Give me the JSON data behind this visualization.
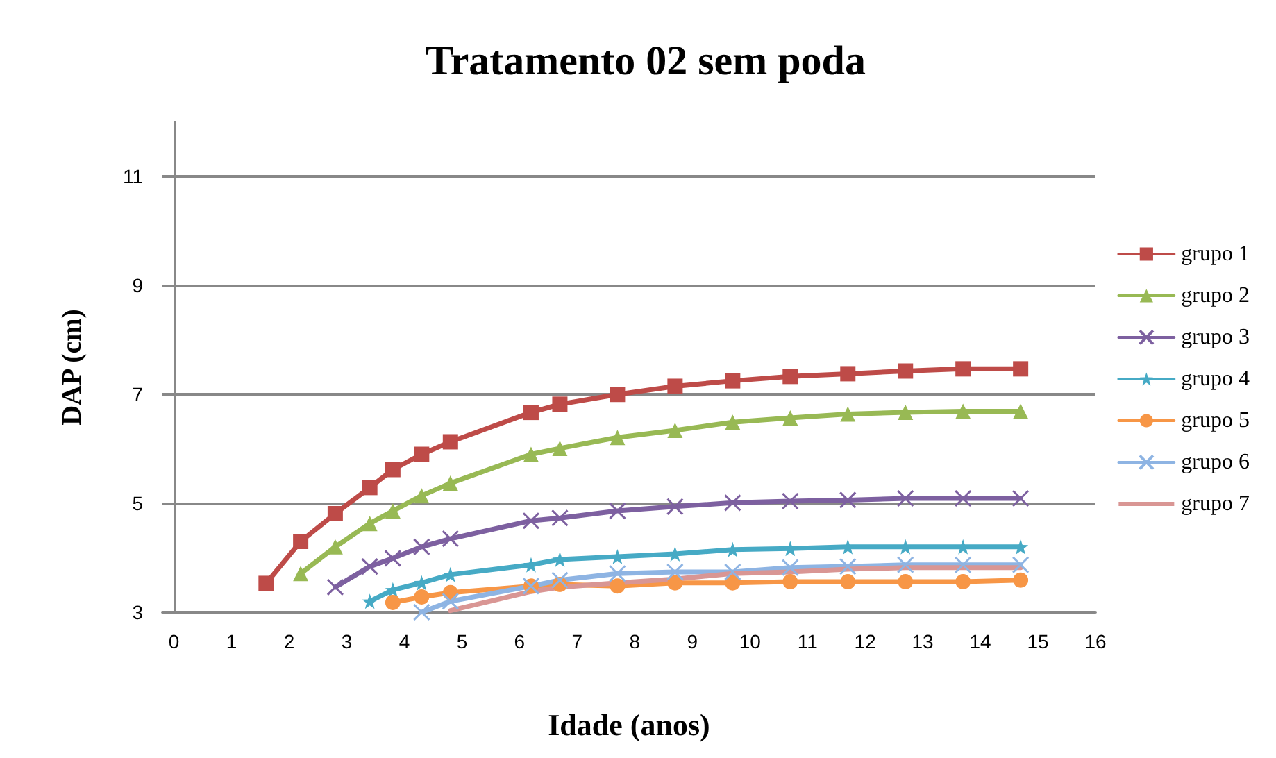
{
  "chart_data": {
    "type": "line",
    "title": "Tratamento 02 sem poda",
    "xlabel": "Idade (anos)",
    "ylabel": "DAP (cm)",
    "series": [
      {
        "name": "grupo 1",
        "color": "#be4b48",
        "marker": "square",
        "x": [
          1.6,
          2.2,
          2.8,
          3.4,
          3.8,
          4.3,
          4.8,
          6.2,
          6.7,
          7.7,
          8.7,
          9.7,
          10.7,
          11.7,
          12.7,
          13.7,
          14.7
        ],
        "values": [
          3.53,
          4.3,
          4.81,
          5.29,
          5.62,
          5.9,
          6.13,
          6.67,
          6.82,
          7.0,
          7.15,
          7.25,
          7.33,
          7.38,
          7.43,
          7.47,
          7.47
        ]
      },
      {
        "name": "grupo 2",
        "color": "#98b954",
        "marker": "triangle",
        "x": [
          2.2,
          2.8,
          3.4,
          3.8,
          4.3,
          4.8,
          6.2,
          6.7,
          7.7,
          8.7,
          9.7,
          10.7,
          11.7,
          12.7,
          13.7,
          14.7
        ],
        "values": [
          3.71,
          4.2,
          4.63,
          4.86,
          5.14,
          5.37,
          5.9,
          6.01,
          6.21,
          6.34,
          6.49,
          6.57,
          6.64,
          6.67,
          6.69,
          6.69
        ]
      },
      {
        "name": "grupo 3",
        "color": "#7d60a0",
        "marker": "cross",
        "x": [
          2.8,
          3.4,
          3.8,
          4.3,
          4.8,
          6.2,
          6.7,
          7.7,
          8.7,
          9.7,
          10.7,
          11.7,
          12.7,
          13.7,
          14.7
        ],
        "values": [
          3.46,
          3.84,
          3.99,
          4.2,
          4.35,
          4.68,
          4.73,
          4.86,
          4.94,
          5.01,
          5.04,
          5.06,
          5.09,
          5.09,
          5.09
        ]
      },
      {
        "name": "grupo 4",
        "color": "#46aac5",
        "marker": "star",
        "x": [
          3.4,
          3.8,
          4.3,
          4.8,
          6.2,
          6.7,
          7.7,
          8.7,
          9.7,
          10.7,
          11.7,
          12.7,
          13.7,
          14.7
        ],
        "values": [
          3.2,
          3.41,
          3.54,
          3.69,
          3.87,
          3.97,
          4.02,
          4.07,
          4.15,
          4.17,
          4.2,
          4.2,
          4.2,
          4.2
        ]
      },
      {
        "name": "grupo 5",
        "color": "#f79646",
        "marker": "circle",
        "x": [
          3.8,
          4.3,
          4.8,
          6.2,
          6.7,
          7.7,
          8.7,
          9.7,
          10.7,
          11.7,
          12.7,
          13.7,
          14.7
        ],
        "values": [
          3.18,
          3.28,
          3.36,
          3.48,
          3.51,
          3.48,
          3.54,
          3.54,
          3.56,
          3.56,
          3.56,
          3.56,
          3.59
        ]
      },
      {
        "name": "grupo 6",
        "color": "#8eb4e3",
        "marker": "cross",
        "x": [
          4.3,
          4.8,
          6.2,
          6.7,
          7.7,
          8.7,
          9.7,
          10.7,
          11.7,
          12.7,
          13.7,
          14.7
        ],
        "values": [
          3.0,
          3.2,
          3.48,
          3.59,
          3.71,
          3.74,
          3.74,
          3.82,
          3.84,
          3.87,
          3.87,
          3.87
        ]
      },
      {
        "name": "grupo 7",
        "color": "#d99694",
        "marker": "none",
        "x": [
          4.8,
          6.2,
          6.7,
          7.7,
          8.7,
          9.7,
          10.7,
          11.7,
          12.7,
          13.7,
          14.7
        ],
        "values": [
          3.03,
          3.38,
          3.46,
          3.54,
          3.61,
          3.71,
          3.74,
          3.79,
          3.82,
          3.82,
          3.82
        ]
      }
    ],
    "xlim": [
      -0.2,
      16
    ],
    "xticks": [
      0,
      1,
      2,
      3,
      4,
      5,
      6,
      7,
      8,
      9,
      10,
      11,
      12,
      13,
      14,
      15,
      16
    ],
    "ylim": [
      3,
      12
    ],
    "yticks": [
      3,
      5,
      7,
      9,
      11
    ],
    "grid": "y",
    "legend": "right",
    "line_style": "solid"
  }
}
